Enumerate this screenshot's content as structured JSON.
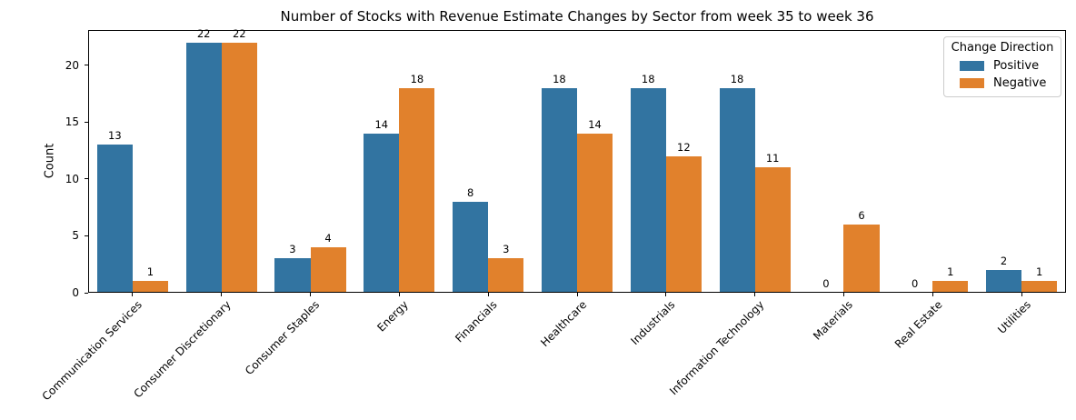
{
  "chart_data": {
    "type": "bar",
    "title": "Number of Stocks with Revenue Estimate Changes by Sector from week 35 to week 36",
    "xlabel": "",
    "ylabel": "Count",
    "categories": [
      "Communication Services",
      "Consumer Discretionary",
      "Consumer Staples",
      "Energy",
      "Financials",
      "Healthcare",
      "Industrials",
      "Information Technology",
      "Materials",
      "Real Estate",
      "Utilities"
    ],
    "series": [
      {
        "name": "Positive",
        "color": "#3274a1",
        "values": [
          13,
          22,
          3,
          14,
          8,
          18,
          18,
          18,
          0,
          0,
          2
        ]
      },
      {
        "name": "Negative",
        "color": "#e1812c",
        "values": [
          1,
          22,
          4,
          18,
          3,
          14,
          12,
          11,
          6,
          1,
          1
        ]
      }
    ],
    "yticks": [
      0,
      5,
      10,
      15,
      20
    ],
    "ylim": [
      0,
      23.1
    ],
    "bar_value_labels": true,
    "grid": false,
    "x_tick_rotation": 45,
    "legend": {
      "title": "Change Direction",
      "position": "upper right"
    }
  }
}
